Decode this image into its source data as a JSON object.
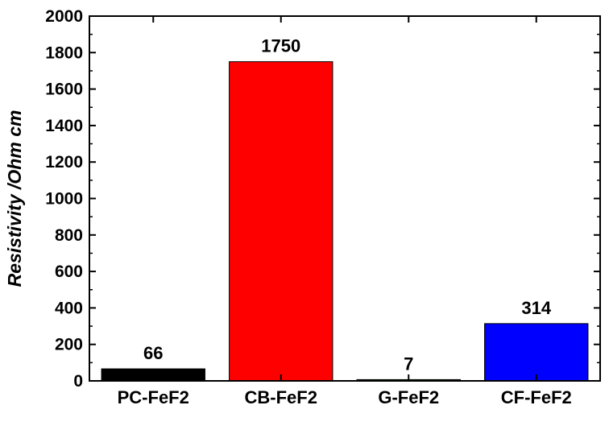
{
  "chart_data": {
    "type": "bar",
    "title": "",
    "xlabel": "",
    "ylabel": "Resistivity /Ohm cm",
    "ylim": [
      0,
      2000
    ],
    "yticks": [
      0,
      200,
      400,
      600,
      800,
      1000,
      1200,
      1400,
      1600,
      1800,
      2000
    ],
    "grid": false,
    "categories": [
      "PC-FeF2",
      "CB-FeF2",
      "G-FeF2",
      "CF-FeF2"
    ],
    "values": [
      66,
      1750,
      7,
      314
    ],
    "data_labels": [
      "66",
      "1750",
      "7",
      "314"
    ],
    "colors": [
      "#000000",
      "#ff0000",
      "#008000",
      "#0000ff"
    ]
  }
}
